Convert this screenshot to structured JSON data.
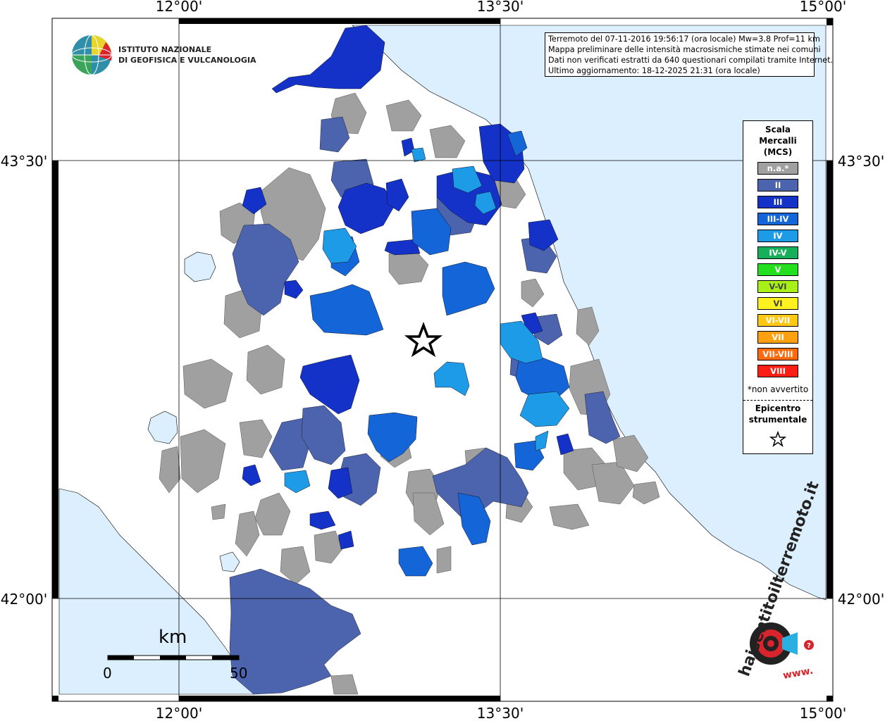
{
  "axes": {
    "top_ticks": [
      "12°00'",
      "13°30'",
      "15°00'"
    ],
    "bottom_ticks": [
      "12°00'",
      "13°30'",
      "15°00'"
    ],
    "left_ticks": [
      "43°30'",
      "42°00'"
    ],
    "right_ticks": [
      "43°30'",
      "42°00'"
    ]
  },
  "header_logo": {
    "line1": "ISTITUTO NAZIONALE",
    "line2": "DI GEOFISICA E VULCANOLOGIA"
  },
  "info": {
    "line1": "Terremoto del 07-11-2016 19:56:17 (ora locale) Mw=3.8 Prof=11 km",
    "line2": "Mappa preliminare delle intensità macrosismiche stimate nei comuni",
    "line3": "Dati non verificati estratti da 640 questionari compilati tramite Internet.",
    "line4": "Ultimo aggiornamento: 18-12-2025 21:31 (ora locale)"
  },
  "legend": {
    "title": [
      "Scala",
      "Mercalli",
      "(MCS)"
    ],
    "classes": [
      {
        "label": "n.a.*",
        "color": "#a0a0a0"
      },
      {
        "label": "II",
        "color": "#4c63ad"
      },
      {
        "label": "III",
        "color": "#1432c8"
      },
      {
        "label": "III-IV",
        "color": "#1466d8"
      },
      {
        "label": "IV",
        "color": "#1e9be6"
      },
      {
        "label": "IV-V",
        "color": "#16b05a"
      },
      {
        "label": "V",
        "color": "#22e01e"
      },
      {
        "label": "V-VI",
        "color": "#a8f018"
      },
      {
        "label": "VI",
        "color": "#fff020"
      },
      {
        "label": "VI-VII",
        "color": "#ffc814"
      },
      {
        "label": "VII",
        "color": "#ffa010"
      },
      {
        "label": "VII-VIII",
        "color": "#ff6a0c"
      },
      {
        "label": "VIII",
        "color": "#ff1e14"
      }
    ],
    "note": "*non avvertito",
    "epicenter_title": [
      "Epicentro",
      "strumentale"
    ],
    "epicenter_icon": "star-icon"
  },
  "scale_bar": {
    "unit": "km",
    "start": "0",
    "end": "50"
  },
  "bottom_logo": {
    "text": "haisentitoilterremoto.it",
    "url_text": "www."
  },
  "colors": {
    "sea": "#dcefff",
    "land": "#ffffff"
  }
}
